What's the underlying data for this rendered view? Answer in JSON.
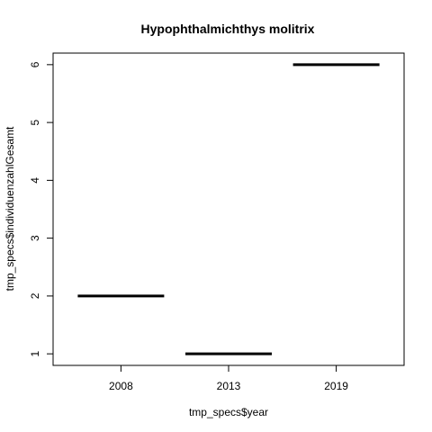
{
  "chart_data": {
    "type": "bar",
    "title": "Hypophthalmichthys molitrix",
    "xlabel": "tmp_specs$year",
    "ylabel": "tmp_specs$individuenzahlGesamt",
    "categories": [
      "2008",
      "2013",
      "2019"
    ],
    "values": [
      2,
      1,
      6
    ],
    "ylim": [
      0.8,
      6.2
    ],
    "yticks": [
      1,
      2,
      3,
      4,
      5,
      6
    ],
    "grid": false,
    "legend": "none"
  }
}
